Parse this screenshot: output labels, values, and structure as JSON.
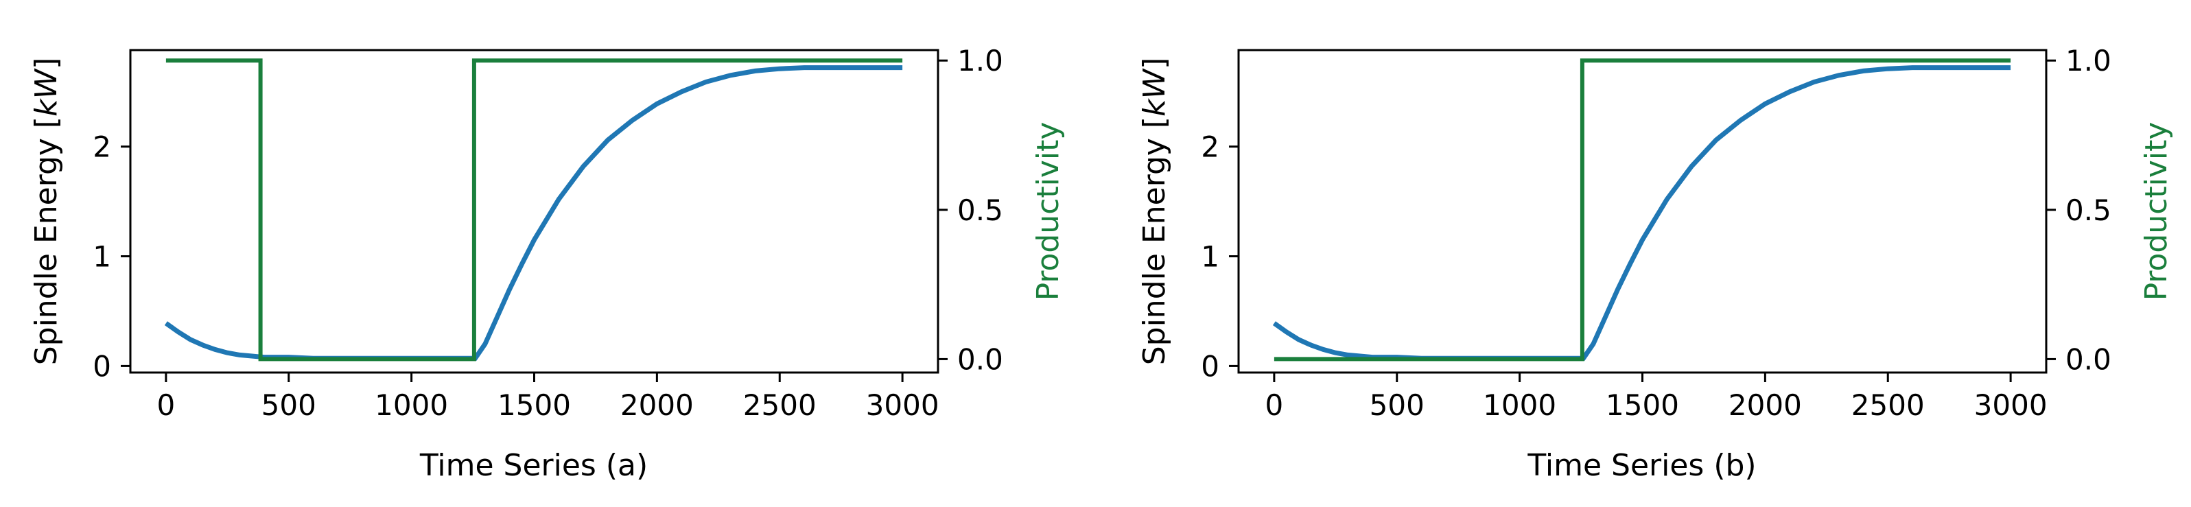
{
  "chart_data": [
    {
      "type": "line",
      "xlabel": "Time Series (a)",
      "ylabel": "Spindle Energy [kW]",
      "ylabel_parts": {
        "prefix": "Spindle Energy [",
        "unit": "kW",
        "suffix": "]"
      },
      "y2label": "Productivity",
      "xlim": [
        -145,
        3145
      ],
      "ylim": [
        -0.06,
        2.88
      ],
      "y2lim": [
        -0.045,
        1.035
      ],
      "xticks": [
        0,
        500,
        1000,
        1500,
        2000,
        2500,
        3000
      ],
      "xtick_labels": [
        "0",
        "500",
        "1000",
        "1500",
        "2000",
        "2500",
        "3000"
      ],
      "yticks": [
        0,
        1,
        2
      ],
      "ytick_labels": [
        "0",
        "1",
        "2"
      ],
      "y2ticks": [
        0.0,
        0.5,
        1.0
      ],
      "y2tick_labels": [
        "0.0",
        "0.5",
        "1.0"
      ],
      "series": [
        {
          "axis": "left",
          "color": "#1f77b4",
          "x": [
            0,
            50,
            100,
            150,
            200,
            250,
            300,
            350,
            400,
            500,
            600,
            800,
            1000,
            1200,
            1260,
            1300,
            1350,
            1400,
            1450,
            1500,
            1600,
            1700,
            1800,
            1900,
            2000,
            2100,
            2200,
            2300,
            2400,
            2500,
            2600,
            2700,
            2800,
            2900,
            3000
          ],
          "y": [
            0.39,
            0.31,
            0.24,
            0.19,
            0.15,
            0.12,
            0.1,
            0.09,
            0.08,
            0.08,
            0.07,
            0.07,
            0.07,
            0.07,
            0.07,
            0.2,
            0.45,
            0.7,
            0.93,
            1.15,
            1.52,
            1.82,
            2.06,
            2.24,
            2.39,
            2.5,
            2.59,
            2.65,
            2.69,
            2.71,
            2.72,
            2.72,
            2.72,
            2.72,
            2.72
          ]
        },
        {
          "axis": "right",
          "color": "#1a7f3c",
          "x": [
            0,
            385,
            385,
            1255,
            1255,
            3000
          ],
          "y": [
            1.0,
            1.0,
            0.0,
            0.0,
            1.0,
            1.0
          ]
        }
      ]
    },
    {
      "type": "line",
      "xlabel": "Time Series (b)",
      "ylabel": "Spindle Energy [kW]",
      "ylabel_parts": {
        "prefix": "Spindle Energy [",
        "unit": "kW",
        "suffix": "]"
      },
      "y2label": "Productivity",
      "xlim": [
        -145,
        3145
      ],
      "ylim": [
        -0.06,
        2.88
      ],
      "y2lim": [
        -0.045,
        1.035
      ],
      "xticks": [
        0,
        500,
        1000,
        1500,
        2000,
        2500,
        3000
      ],
      "xtick_labels": [
        "0",
        "500",
        "1000",
        "1500",
        "2000",
        "2500",
        "3000"
      ],
      "yticks": [
        0,
        1,
        2
      ],
      "ytick_labels": [
        "0",
        "1",
        "2"
      ],
      "y2ticks": [
        0.0,
        0.5,
        1.0
      ],
      "y2tick_labels": [
        "0.0",
        "0.5",
        "1.0"
      ],
      "series": [
        {
          "axis": "left",
          "color": "#1f77b4",
          "x": [
            0,
            50,
            100,
            150,
            200,
            250,
            300,
            350,
            400,
            500,
            600,
            800,
            1000,
            1200,
            1260,
            1300,
            1350,
            1400,
            1450,
            1500,
            1600,
            1700,
            1800,
            1900,
            2000,
            2100,
            2200,
            2300,
            2400,
            2500,
            2600,
            2700,
            2800,
            2900,
            3000
          ],
          "y": [
            0.39,
            0.31,
            0.24,
            0.19,
            0.15,
            0.12,
            0.1,
            0.09,
            0.08,
            0.08,
            0.07,
            0.07,
            0.07,
            0.07,
            0.07,
            0.2,
            0.45,
            0.7,
            0.93,
            1.15,
            1.52,
            1.82,
            2.06,
            2.24,
            2.39,
            2.5,
            2.59,
            2.65,
            2.69,
            2.71,
            2.72,
            2.72,
            2.72,
            2.72,
            2.72
          ]
        },
        {
          "axis": "right",
          "color": "#1a7f3c",
          "x": [
            0,
            1255,
            1255,
            3000
          ],
          "y": [
            0.0,
            0.0,
            1.0,
            1.0
          ]
        }
      ]
    }
  ]
}
